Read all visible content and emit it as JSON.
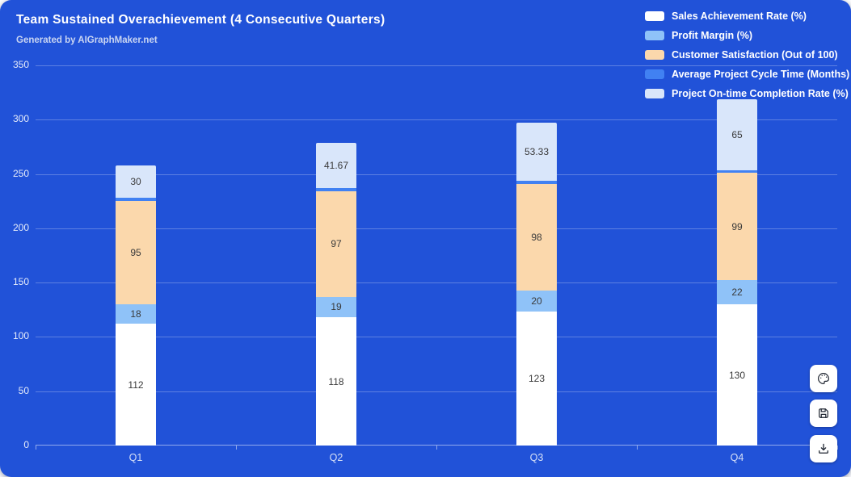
{
  "header": {
    "title": "Team Sustained Overachievement (4 Consecutive Quarters)",
    "subtitle": "Generated by AIGraphMaker.net"
  },
  "colors": {
    "background": "#2152D8",
    "grid": "rgba(255,255,255,0.27)",
    "axis": "rgba(255,255,255,0.5)",
    "ytick_text": "#E6ECFA",
    "xtick_text": "#D6E0F7",
    "segment_label_dark": "#3A3A3A",
    "segment_label_light": "#FFFFFF"
  },
  "chart_data": {
    "type": "bar",
    "stacked": true,
    "title": "Team Sustained Overachievement (4 Consecutive Quarters)",
    "categories": [
      "Q1",
      "Q2",
      "Q3",
      "Q4"
    ],
    "series": [
      {
        "name": "Sales Achievement Rate (%)",
        "color": "#FFFFFF",
        "values": [
          112,
          118,
          123,
          130
        ]
      },
      {
        "name": "Profit Margin (%)",
        "color": "#8FC2F8",
        "values": [
          18,
          19,
          20,
          22
        ]
      },
      {
        "name": "Customer Satisfaction (Out of 100)",
        "color": "#FBD8AC",
        "values": [
          95,
          97,
          98,
          99
        ]
      },
      {
        "name": "Average Project Cycle Time (Months)",
        "color": "#4181F2",
        "values": [
          3.2,
          3.03,
          2.76,
          2.5
        ]
      },
      {
        "name": "Project On-time Completion Rate (%)",
        "color": "#D9E6FA",
        "values": [
          30,
          41.67,
          53.33,
          65
        ]
      }
    ],
    "xlabel": "",
    "ylabel": "",
    "ylim": [
      0,
      350
    ],
    "yticks": [
      0,
      50,
      100,
      150,
      200,
      250,
      300,
      350
    ],
    "grid": true,
    "legend_position": "top-right"
  },
  "toolbar": {
    "buttons": [
      {
        "id": "palette",
        "icon": "palette-icon"
      },
      {
        "id": "save",
        "icon": "save-icon"
      },
      {
        "id": "download",
        "icon": "download-icon"
      }
    ]
  }
}
